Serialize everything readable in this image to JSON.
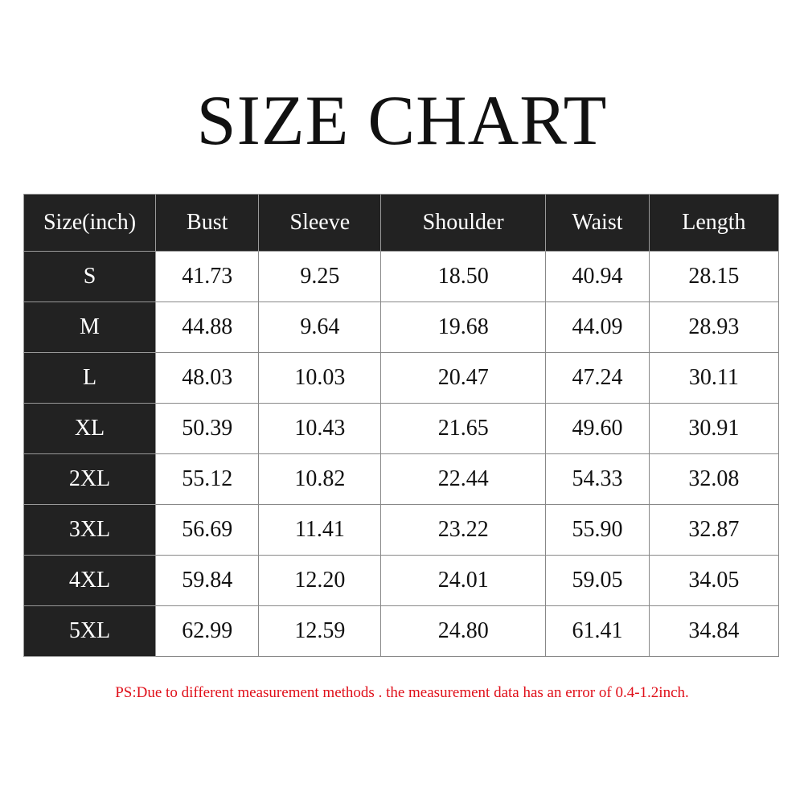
{
  "title": "SIZE CHART",
  "headers": [
    "Size(inch)",
    "Bust",
    "Sleeve",
    "Shoulder",
    "Waist",
    "Length"
  ],
  "rows": [
    [
      "S",
      "41.73",
      "9.25",
      "18.50",
      "40.94",
      "28.15"
    ],
    [
      "M",
      "44.88",
      "9.64",
      "19.68",
      "44.09",
      "28.93"
    ],
    [
      "L",
      "48.03",
      "10.03",
      "20.47",
      "47.24",
      "30.11"
    ],
    [
      "XL",
      "50.39",
      "10.43",
      "21.65",
      "49.60",
      "30.91"
    ],
    [
      "2XL",
      "55.12",
      "10.82",
      "22.44",
      "54.33",
      "32.08"
    ],
    [
      "3XL",
      "56.69",
      "11.41",
      "23.22",
      "55.90",
      "32.87"
    ],
    [
      "4XL",
      "59.84",
      "12.20",
      "24.01",
      "59.05",
      "34.05"
    ],
    [
      "5XL",
      "62.99",
      "12.59",
      "24.80",
      "61.41",
      "34.84"
    ]
  ],
  "note": "PS:Due to different measurement methods . the measurement data has an error of 0.4-1.2inch.",
  "colors": {
    "header_bg": "#222222",
    "note": "#e0101a"
  }
}
